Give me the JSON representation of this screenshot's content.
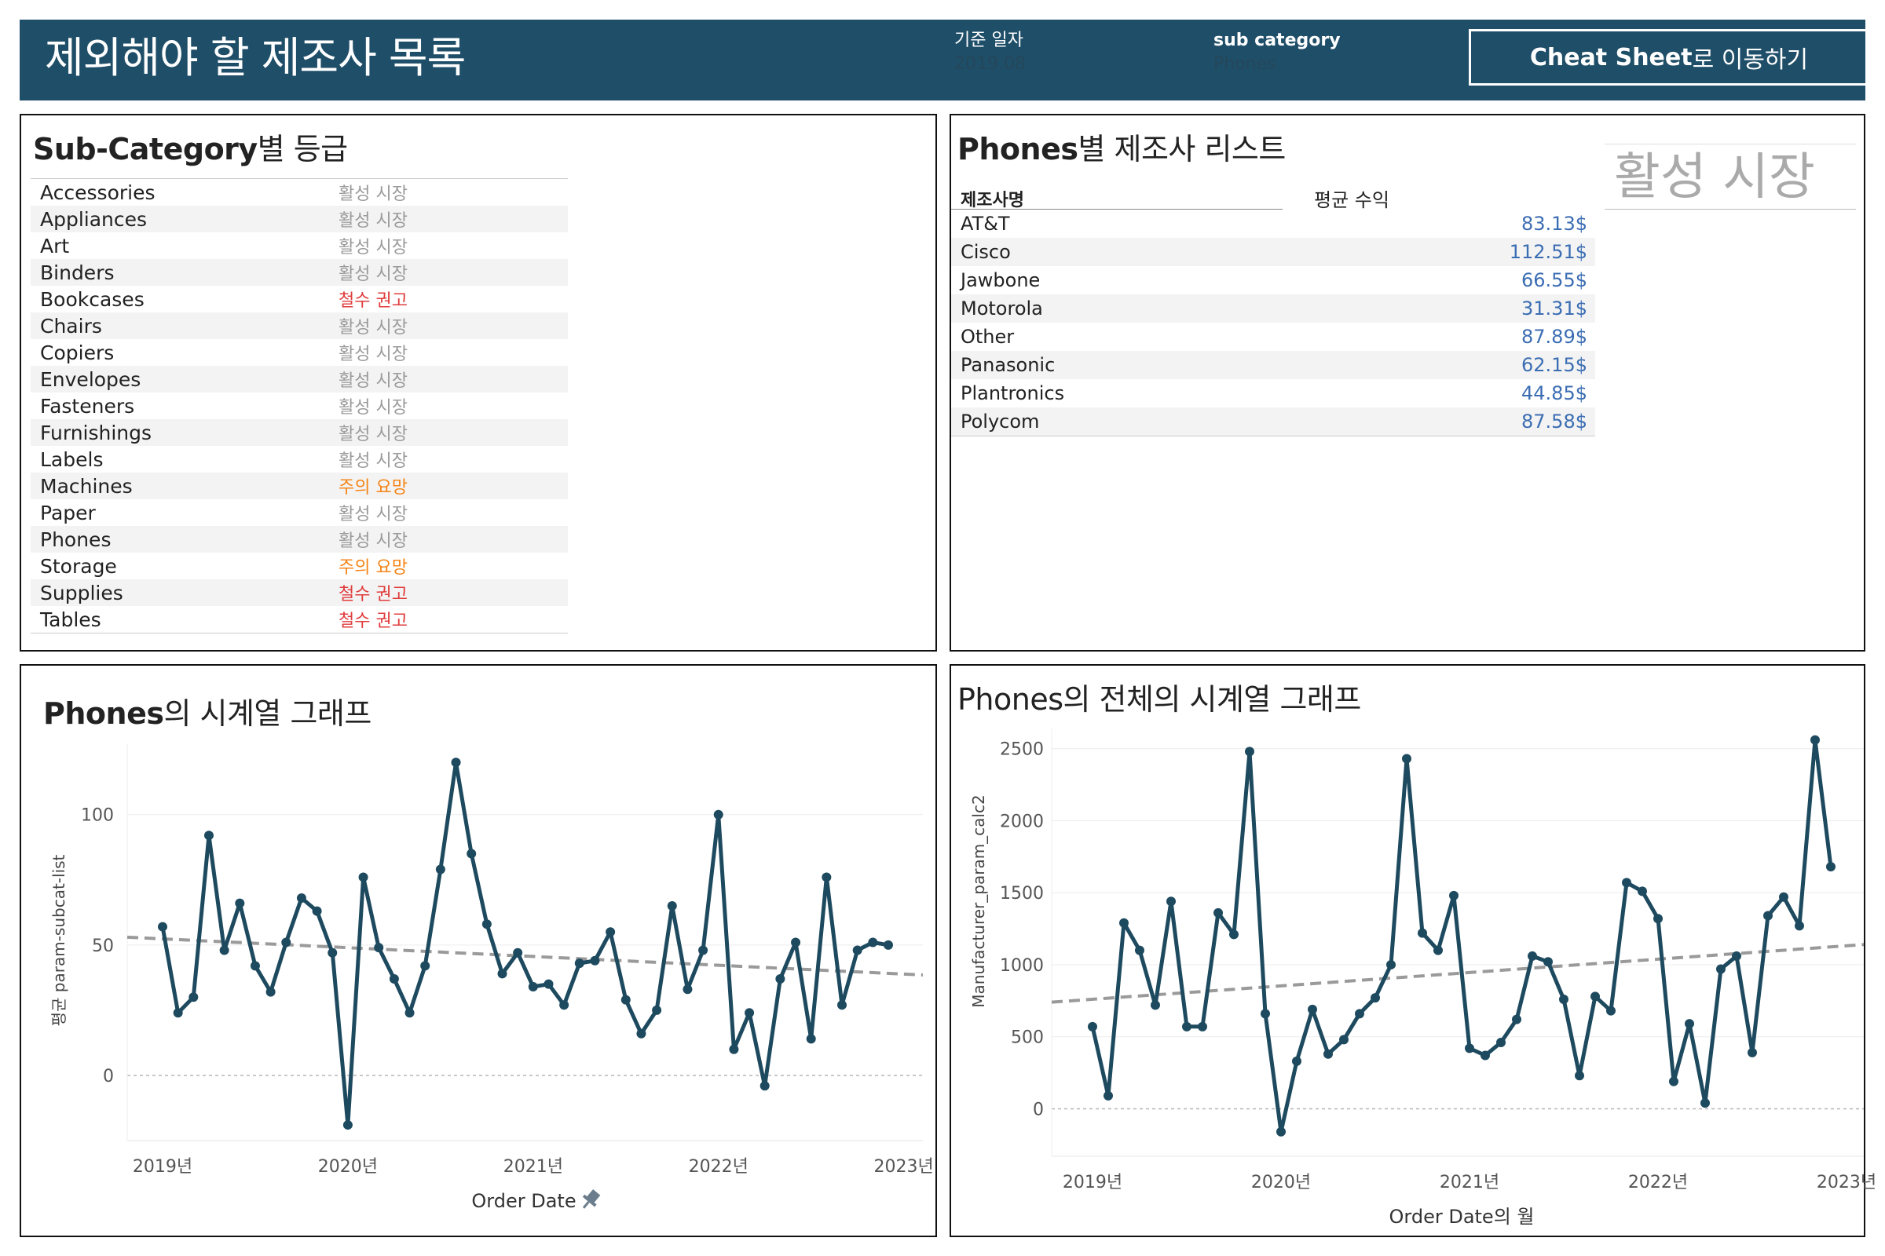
{
  "header": {
    "title": "제외해야 할 제조사 목록",
    "date_label": "기준 일자",
    "date_value": "2019.08",
    "subcat_label": "sub category",
    "subcat_value": "Phones",
    "cheat_button_bold": "Cheat Sheet",
    "cheat_button_rest": "로 이동하기"
  },
  "subcat_panel": {
    "title_bold": "Sub-Category",
    "title_rest": "별 등급",
    "rows": [
      {
        "name": "Accessories",
        "grade": "활성 시장",
        "status": "active"
      },
      {
        "name": "Appliances",
        "grade": "활성 시장",
        "status": "active"
      },
      {
        "name": "Art",
        "grade": "활성 시장",
        "status": "active"
      },
      {
        "name": "Binders",
        "grade": "활성 시장",
        "status": "active"
      },
      {
        "name": "Bookcases",
        "grade": "철수 권고",
        "status": "bad"
      },
      {
        "name": "Chairs",
        "grade": "활성 시장",
        "status": "active"
      },
      {
        "name": "Copiers",
        "grade": "활성 시장",
        "status": "active"
      },
      {
        "name": "Envelopes",
        "grade": "활성 시장",
        "status": "active"
      },
      {
        "name": "Fasteners",
        "grade": "활성 시장",
        "status": "active"
      },
      {
        "name": "Furnishings",
        "grade": "활성 시장",
        "status": "active"
      },
      {
        "name": "Labels",
        "grade": "활성 시장",
        "status": "active"
      },
      {
        "name": "Machines",
        "grade": "주의 요망",
        "status": "warn"
      },
      {
        "name": "Paper",
        "grade": "활성 시장",
        "status": "active"
      },
      {
        "name": "Phones",
        "grade": "활성 시장",
        "status": "active"
      },
      {
        "name": "Storage",
        "grade": "주의 요망",
        "status": "warn"
      },
      {
        "name": "Supplies",
        "grade": "철수 권고",
        "status": "bad"
      },
      {
        "name": "Tables",
        "grade": "철수 권고",
        "status": "bad"
      }
    ]
  },
  "manuf_panel": {
    "title_bold": "Phones",
    "title_rest": "별 제조사 리스트",
    "col_name": "제조사명",
    "col_value": "평균 수익",
    "status_big": "활성 시장",
    "rows": [
      {
        "name": "AT&T",
        "value": "83.13$"
      },
      {
        "name": "Cisco",
        "value": "112.51$"
      },
      {
        "name": "Jawbone",
        "value": "66.55$"
      },
      {
        "name": "Motorola",
        "value": "31.31$"
      },
      {
        "name": "Other",
        "value": "87.89$"
      },
      {
        "name": "Panasonic",
        "value": "62.15$"
      },
      {
        "name": "Plantronics",
        "value": "44.85$"
      },
      {
        "name": "Polycom",
        "value": "87.58$"
      }
    ]
  },
  "colors": {
    "header_bg": "#1f4e68",
    "line": "#1e4a5f",
    "trend": "#9a9a9a",
    "value_blue": "#3b6db3",
    "warn": "#f58518",
    "bad": "#e03c3c",
    "active": "#9a9a9a"
  },
  "chart_data": [
    {
      "type": "line",
      "title": "Phones의 시계열 그래프",
      "title_bold": "Phones",
      "title_rest": "의 시계열 그래프",
      "xlabel": "Order Date",
      "ylabel": "평균 param-subcat-list",
      "x_ticks": [
        "2019년",
        "2020년",
        "2021년",
        "2022년",
        "2023년"
      ],
      "y_ticks": [
        0,
        50,
        100
      ],
      "ylim": [
        -25,
        127
      ],
      "x_start": "2019-01",
      "x_end": "2022-12",
      "series": [
        {
          "values": [
            57,
            24,
            30,
            92,
            48,
            66,
            42,
            32,
            51,
            68,
            63,
            47,
            -19,
            76,
            49,
            37,
            24,
            42,
            79,
            120,
            85,
            58,
            39,
            47,
            34,
            35,
            27,
            43,
            44,
            55,
            29,
            16,
            25,
            65,
            33,
            48,
            100,
            10,
            24,
            -4,
            37,
            51,
            14,
            76,
            27,
            48,
            51,
            50
          ]
        }
      ],
      "trend": {
        "start": 53,
        "end": 38.5
      },
      "grid": true
    },
    {
      "type": "line",
      "title": "Phones의 전체의 시계열 그래프",
      "title_bold": "Phones",
      "title_rest": "의 전체의 시계열 그래프",
      "xlabel": "Order Date의 월",
      "ylabel": "Manufacturer_param_calc2",
      "x_ticks": [
        "2019년",
        "2020년",
        "2021년",
        "2022년",
        "2023년"
      ],
      "y_ticks": [
        0,
        500,
        1000,
        1500,
        2000,
        2500
      ],
      "ylim": [
        -330,
        2640
      ],
      "x_start": "2019-01",
      "x_end": "2022-12",
      "series": [
        {
          "values": [
            570,
            90,
            1290,
            1100,
            720,
            1440,
            570,
            570,
            1360,
            1210,
            2480,
            660,
            -160,
            330,
            690,
            380,
            480,
            660,
            770,
            1000,
            2430,
            1220,
            1100,
            1480,
            420,
            370,
            460,
            620,
            1060,
            1020,
            760,
            230,
            780,
            680,
            1570,
            1510,
            1320,
            190,
            590,
            40,
            970,
            1060,
            390,
            1340,
            1470,
            1270,
            2560,
            1680
          ]
        }
      ],
      "trend": {
        "start": 740,
        "end": 1140
      },
      "grid": true
    }
  ]
}
